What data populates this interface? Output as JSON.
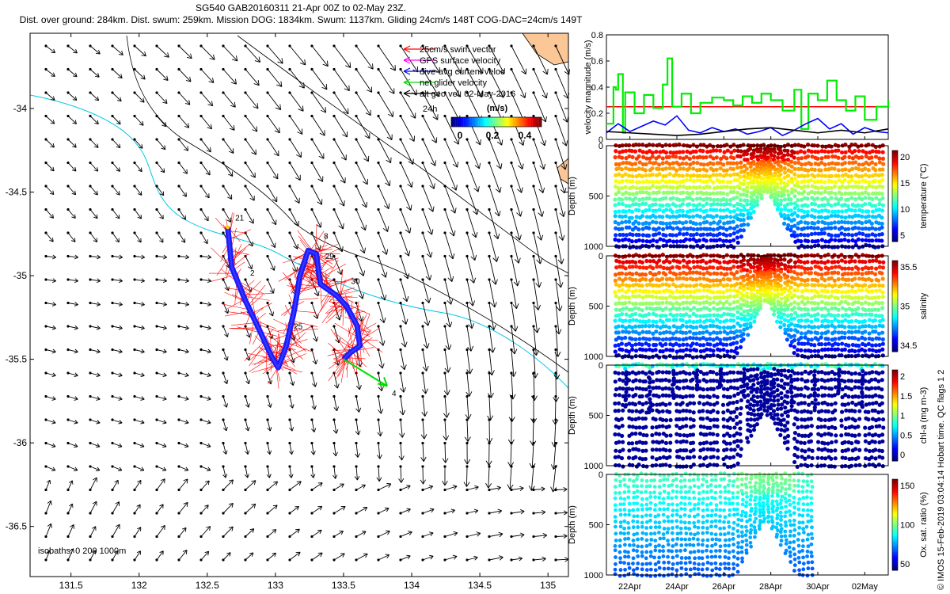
{
  "header": {
    "line1": "SG540 GAB20160311 21-Apr 00Z to 02-May 23Z.",
    "line2": "Dist. over ground: 284km. Dist. swum: 259km. Mission DOG: 1834km. Swum: 1137km. Gliding 24cm/s 148T COG-DAC=24cm/s 149T"
  },
  "credit": "© IMOS 15-Feb-2019 03:04:14 Hobart time. QC flags 1  2",
  "map": {
    "type": "scatter",
    "xlim": [
      131.2,
      135.15
    ],
    "ylim": [
      -36.8,
      -33.55
    ],
    "x_ticks": [
      131.5,
      132,
      132.5,
      133,
      133.5,
      134,
      134.5,
      135
    ],
    "x_tick_labels": [
      "131.5",
      "132",
      "132.5",
      "133",
      "133.5",
      "134",
      "134.5",
      "135"
    ],
    "y_ticks": [
      -34,
      -34.5,
      -35,
      -35.5,
      -36,
      -36.5
    ],
    "y_tick_labels": [
      "-34",
      "-34.5",
      "-35",
      "-35.5",
      "-36",
      "-36.5"
    ],
    "isobaths_label": "isobaths: 0   200  1000m",
    "legend": [
      {
        "label": "25cm/s swim vector",
        "color": "#ff0000"
      },
      {
        "label": "GPS surface velocity",
        "color": "#ff00ff"
      },
      {
        "label": "dive-avg current veloc",
        "color": "#0000ff"
      },
      {
        "label": "net glider velocity",
        "color": "#00dd00"
      },
      {
        "label": "alt geo vel. 02-May-2016",
        "color": "#000000"
      }
    ],
    "legend_24h": "24h",
    "colorbar_title": "(m/s)",
    "colorbar_ticks": [
      "0",
      "0.2",
      "0.4"
    ],
    "track": [
      [
        132.65,
        -34.71
      ],
      [
        132.68,
        -34.95
      ],
      [
        132.78,
        -35.15
      ],
      [
        132.88,
        -35.32
      ],
      [
        132.97,
        -35.48
      ],
      [
        133.02,
        -35.55
      ],
      [
        133.08,
        -35.42
      ],
      [
        133.14,
        -35.2
      ],
      [
        133.18,
        -35.0
      ],
      [
        133.24,
        -34.85
      ],
      [
        133.3,
        -34.87
      ],
      [
        133.33,
        -35.05
      ],
      [
        133.45,
        -35.12
      ],
      [
        133.52,
        -35.18
      ],
      [
        133.6,
        -35.3
      ],
      [
        133.62,
        -35.42
      ],
      [
        133.55,
        -35.46
      ],
      [
        133.5,
        -35.5
      ]
    ],
    "net_velocity": {
      "from": [
        133.5,
        -35.5
      ],
      "to": [
        133.82,
        -35.66
      ]
    },
    "day_labels": [
      {
        "text": "21",
        "lon": 132.67,
        "lat": -34.67
      },
      {
        "text": "2",
        "lon": 132.78,
        "lat": -35.0
      },
      {
        "text": "8",
        "lon": 133.32,
        "lat": -34.78
      },
      {
        "text": "29",
        "lon": 133.33,
        "lat": -34.9
      },
      {
        "text": "30",
        "lon": 133.52,
        "lat": -35.05
      },
      {
        "text": "25",
        "lon": 133.1,
        "lat": -35.32
      },
      {
        "text": "4",
        "lon": 133.82,
        "lat": -35.72
      }
    ],
    "currents_note": "arrow field of altimetry geostrophic velocity, strongest (~0.3-0.4 m/s, southeastward) in the northeast of the map"
  },
  "velocity_panel": {
    "type": "line",
    "ylabel": "velocity magnitude (m/s)",
    "ylim": [
      0,
      0.8
    ],
    "y_ticks": [
      "0",
      "0.2",
      "0.4",
      "0.6",
      "0.8"
    ],
    "x_start_day": 21,
    "x_end_day": 33,
    "series": [
      {
        "color": "#ff0000",
        "values": [
          [
            21,
            0.25
          ],
          [
            33,
            0.25
          ]
        ]
      },
      {
        "color": "#00ee00",
        "values": [
          [
            21,
            0.12
          ],
          [
            21.3,
            0.4
          ],
          [
            21.4,
            0.38
          ],
          [
            21.5,
            0.5
          ],
          [
            21.7,
            0.05
          ],
          [
            21.8,
            0.36
          ],
          [
            22.2,
            0.2
          ],
          [
            22.6,
            0.34
          ],
          [
            23,
            0.24
          ],
          [
            23.4,
            0.42
          ],
          [
            23.6,
            0.62
          ],
          [
            23.8,
            0.25
          ],
          [
            24.2,
            0.35
          ],
          [
            24.6,
            0.2
          ],
          [
            25,
            0.28
          ],
          [
            25.5,
            0.32
          ],
          [
            26,
            0.3
          ],
          [
            26.4,
            0.26
          ],
          [
            26.8,
            0.33
          ],
          [
            27.2,
            0.28
          ],
          [
            27.6,
            0.35
          ],
          [
            28,
            0.3
          ],
          [
            28.5,
            0.22
          ],
          [
            29,
            0.38
          ],
          [
            29.3,
            0.08
          ],
          [
            29.6,
            0.35
          ],
          [
            30,
            0.3
          ],
          [
            30.4,
            0.45
          ],
          [
            30.8,
            0.3
          ],
          [
            31.2,
            0.22
          ],
          [
            31.6,
            0.33
          ],
          [
            32,
            0.15
          ],
          [
            32.5,
            0.25
          ],
          [
            33,
            0.3
          ]
        ]
      },
      {
        "color": "#0000ff",
        "values": [
          [
            21,
            0.05
          ],
          [
            21.5,
            0.12
          ],
          [
            22,
            0.06
          ],
          [
            22.5,
            0.1
          ],
          [
            23,
            0.14
          ],
          [
            23.5,
            0.11
          ],
          [
            24,
            0.18
          ],
          [
            24.5,
            0.07
          ],
          [
            25,
            0.05
          ],
          [
            25.5,
            0.09
          ],
          [
            26,
            0.06
          ],
          [
            26.5,
            0.08
          ],
          [
            27,
            0.04
          ],
          [
            27.5,
            0.06
          ],
          [
            28,
            0.09
          ],
          [
            28.5,
            0.03
          ],
          [
            29,
            0.07
          ],
          [
            29.5,
            0.12
          ],
          [
            30,
            0.16
          ],
          [
            30.5,
            0.08
          ],
          [
            31,
            0.12
          ],
          [
            31.5,
            0.04
          ],
          [
            32,
            0.09
          ],
          [
            32.5,
            0.06
          ],
          [
            33,
            0.05
          ]
        ]
      },
      {
        "color": "#000000",
        "values": [
          [
            21,
            0.06
          ],
          [
            22,
            0.05
          ],
          [
            23,
            0.04
          ],
          [
            24,
            0.03
          ],
          [
            25,
            0.04
          ],
          [
            26,
            0.06
          ],
          [
            27,
            0.08
          ],
          [
            28,
            0.09
          ],
          [
            29,
            0.07
          ],
          [
            30,
            0.05
          ],
          [
            31,
            0.07
          ],
          [
            32,
            0.05
          ],
          [
            33,
            0.08
          ]
        ]
      }
    ]
  },
  "section_panels": [
    {
      "id": "temperature",
      "cblabel": "temperature (°C)",
      "cb_ticks": [
        "20",
        "15",
        "10",
        "5"
      ],
      "cmap": "jet",
      "ylabel": "Depth (m)",
      "y_ticks": [
        "0",
        "500",
        "1000"
      ]
    },
    {
      "id": "salinity",
      "cblabel": "salinity",
      "cb_ticks": [
        "35.5",
        "35",
        "34.5"
      ],
      "cmap": "jet",
      "ylabel": "Depth (m)",
      "y_ticks": [
        "0",
        "500",
        "1000"
      ]
    },
    {
      "id": "chla",
      "cblabel": "chl-a (mg m-3)",
      "cb_ticks": [
        "2",
        "1.5",
        "1",
        "0.5",
        "0"
      ],
      "cmap": "jet",
      "ylabel": "Depth (m)",
      "y_ticks": [
        "0",
        "500",
        "1000"
      ]
    },
    {
      "id": "oxygen",
      "cblabel": "Ox. sat. ratio (%)",
      "cb_ticks": [
        "150",
        "100",
        "50"
      ],
      "cmap": "jet",
      "ylabel": "Depth (m)",
      "y_ticks": [
        "0",
        "500",
        "1000"
      ]
    }
  ],
  "time_axis": {
    "ticks": [
      {
        "day": 22,
        "label": "22Apr"
      },
      {
        "day": 24,
        "label": "24Apr"
      },
      {
        "day": 26,
        "label": "26Apr"
      },
      {
        "day": 28,
        "label": "28Apr"
      },
      {
        "day": 30,
        "label": "30Apr"
      },
      {
        "day": 32,
        "label": "02May"
      }
    ]
  }
}
